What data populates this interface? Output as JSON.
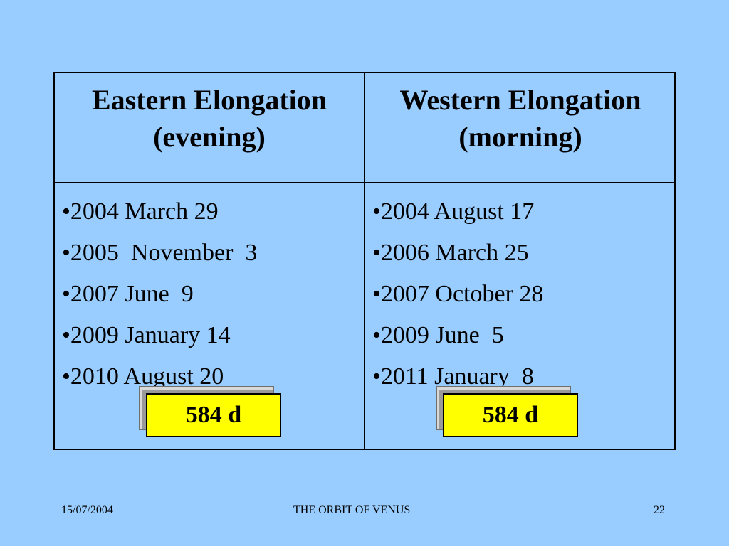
{
  "table": {
    "headers": [
      {
        "line1": "Eastern Elongation",
        "line2": "(evening)"
      },
      {
        "line1": "Western Elongation",
        "line2": "(morning)"
      }
    ],
    "eastern_dates": [
      "2004 March 29",
      "2005  November  3",
      "2007 June  9",
      "2009 January 14",
      "2010 August 20"
    ],
    "western_dates": [
      "2004 August 17",
      "2006 March 25",
      "2007 October 28",
      "2009 June  5",
      "2011 January  8"
    ],
    "eastern_period": "584 d",
    "western_period": "584 d"
  },
  "footer": {
    "date": "15/07/2004",
    "title": "THE ORBIT OF VENUS",
    "page": "22"
  },
  "colors": {
    "background": "#99ccff",
    "box_fill": "#ffff00",
    "text": "#000000"
  }
}
